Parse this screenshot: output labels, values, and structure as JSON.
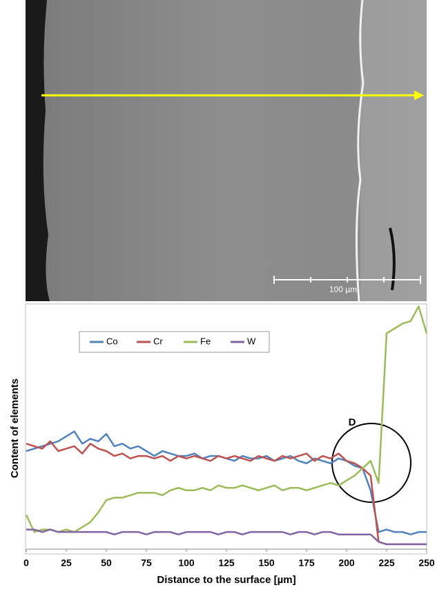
{
  "image": {
    "scale_bar_label": "100 µm"
  },
  "chart_data": {
    "type": "line",
    "x_label": "Distance to the surface [µm]",
    "y_label": "Content of elements",
    "annotation": "D",
    "x": [
      0,
      5,
      10,
      15,
      20,
      25,
      30,
      35,
      40,
      45,
      50,
      55,
      60,
      65,
      70,
      75,
      80,
      85,
      90,
      95,
      100,
      105,
      110,
      115,
      120,
      125,
      130,
      135,
      140,
      145,
      150,
      155,
      160,
      165,
      170,
      175,
      180,
      185,
      190,
      195,
      200,
      205,
      210,
      215,
      220,
      225,
      230,
      235,
      240,
      245,
      250
    ],
    "xlim": [
      0,
      250
    ],
    "xticks": [
      0,
      25,
      50,
      75,
      100,
      125,
      150,
      175,
      200,
      225,
      250
    ],
    "ylim": [
      0,
      100
    ],
    "legend": "upper left",
    "series": [
      {
        "name": "Co",
        "color": "#4f81bd",
        "values": [
          40,
          41,
          42,
          43,
          44,
          46,
          48,
          43,
          45,
          44,
          47,
          42,
          43,
          41,
          42,
          40,
          38,
          40,
          39,
          38,
          38,
          39,
          37,
          38,
          38,
          37,
          36,
          38,
          37,
          37,
          38,
          36,
          37,
          38,
          36,
          35,
          37,
          36,
          35,
          37,
          36,
          34,
          33,
          24,
          7,
          8,
          7,
          7,
          6,
          7,
          7
        ]
      },
      {
        "name": "Cr",
        "color": "#c0504d",
        "values": [
          43,
          42,
          41,
          44,
          40,
          41,
          42,
          39,
          43,
          41,
          40,
          38,
          39,
          37,
          38,
          38,
          37,
          38,
          36,
          38,
          37,
          38,
          37,
          36,
          38,
          37,
          38,
          37,
          36,
          38,
          37,
          36,
          38,
          37,
          38,
          39,
          36,
          38,
          37,
          39,
          36,
          35,
          33,
          30,
          3,
          2,
          2,
          2,
          2,
          2,
          2
        ]
      },
      {
        "name": "Fe",
        "color": "#9bbb59",
        "values": [
          14,
          7,
          8,
          8,
          7,
          8,
          7,
          9,
          11,
          15,
          20,
          21,
          21,
          22,
          23,
          23,
          23,
          22,
          24,
          25,
          24,
          24,
          25,
          24,
          26,
          25,
          25,
          26,
          25,
          24,
          25,
          26,
          24,
          25,
          25,
          24,
          25,
          26,
          27,
          26,
          28,
          30,
          33,
          36,
          27,
          88,
          90,
          92,
          93,
          99,
          88
        ]
      },
      {
        "name": "W",
        "color": "#8064a2",
        "values": [
          8,
          8,
          7,
          8,
          7,
          7,
          7,
          7,
          7,
          7,
          7,
          6,
          7,
          7,
          7,
          6,
          7,
          7,
          7,
          6,
          7,
          7,
          7,
          7,
          6,
          7,
          7,
          6,
          7,
          7,
          7,
          7,
          7,
          6,
          7,
          7,
          6,
          7,
          7,
          6,
          6,
          6,
          6,
          6,
          3,
          2,
          2,
          2,
          2,
          2,
          2
        ]
      }
    ]
  }
}
